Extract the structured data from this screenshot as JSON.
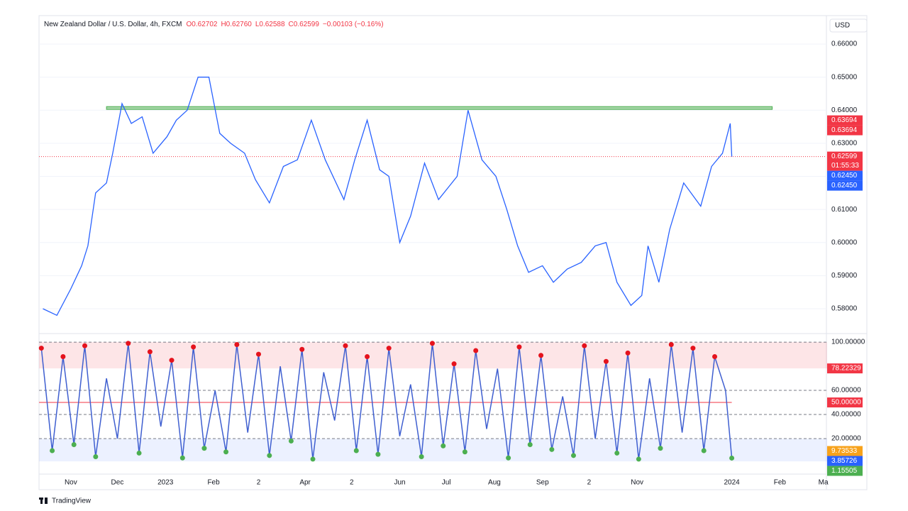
{
  "chart_data": [
    {
      "type": "line",
      "title": "New Zealand Dollar / U.S. Dollar, 4h, FXCM",
      "quote_labels": [
        "O0.62702",
        "H0.62760",
        "L0.62588",
        "C0.62599",
        "−0.00103 (−0.16%)"
      ],
      "currency": "USD",
      "x": [
        -18,
        -9,
        0,
        7,
        11,
        16,
        23,
        27,
        33,
        39,
        46,
        53,
        62,
        68,
        75,
        82,
        89,
        96,
        103,
        112,
        119,
        128,
        137,
        146,
        155,
        164,
        176,
        183,
        191,
        199,
        205,
        212,
        219,
        228,
        237,
        249,
        256,
        265,
        274,
        281,
        288,
        295,
        304,
        311,
        320,
        329,
        338,
        345,
        352,
        361,
        368,
        372,
        379,
        386,
        395,
        406,
        413,
        420,
        425,
        426
      ],
      "values": [
        0.58,
        0.578,
        0.586,
        0.593,
        0.599,
        0.615,
        0.618,
        0.627,
        0.642,
        0.636,
        0.638,
        0.627,
        0.632,
        0.637,
        0.64,
        0.65,
        0.65,
        0.633,
        0.63,
        0.627,
        0.619,
        0.612,
        0.623,
        0.625,
        0.637,
        0.625,
        0.613,
        0.625,
        0.637,
        0.622,
        0.62,
        0.6,
        0.608,
        0.624,
        0.613,
        0.62,
        0.64,
        0.625,
        0.62,
        0.61,
        0.599,
        0.591,
        0.593,
        0.588,
        0.592,
        0.594,
        0.599,
        0.6,
        0.588,
        0.581,
        0.584,
        0.599,
        0.588,
        0.604,
        0.618,
        0.611,
        0.623,
        0.627,
        0.636,
        0.62599
      ],
      "color": "#2962ff",
      "xlim": [
        -20.5,
        487
      ],
      "ylim": [
        0.5742,
        0.6686
      ],
      "yticks": [
        {
          "value": 0.58,
          "label": "0.58000"
        },
        {
          "value": 0.59,
          "label": "0.59000"
        },
        {
          "value": 0.6,
          "label": "0.60000"
        },
        {
          "value": 0.61,
          "label": "0.61000"
        },
        {
          "value": 0.62,
          "label": "0.62000"
        },
        {
          "value": 0.63,
          "label": "0.63000"
        },
        {
          "value": 0.64,
          "label": "0.64000"
        },
        {
          "value": 0.65,
          "label": "0.65000"
        },
        {
          "value": 0.66,
          "label": "0.66000"
        }
      ],
      "xticks": [
        {
          "value": 0,
          "label": "Nov"
        },
        {
          "value": 30,
          "label": "Dec"
        },
        {
          "value": 61,
          "label": "2023"
        },
        {
          "value": 92,
          "label": "Feb"
        },
        {
          "value": 121,
          "label": "2"
        },
        {
          "value": 151,
          "label": "Apr"
        },
        {
          "value": 181,
          "label": "2"
        },
        {
          "value": 212,
          "label": "Jun"
        },
        {
          "value": 242,
          "label": "Jul"
        },
        {
          "value": 273,
          "label": "Aug"
        },
        {
          "value": 304,
          "label": "Sep"
        },
        {
          "value": 334,
          "label": "2"
        },
        {
          "value": 365,
          "label": "Nov"
        },
        {
          "value": 426,
          "label": "2024"
        },
        {
          "value": 457,
          "label": "Feb"
        },
        {
          "value": 485,
          "label": "Ma"
        }
      ],
      "resistance_zone": [
        0.6403,
        0.6411
      ],
      "price_labels": [
        {
          "value": 0.63694,
          "label": "0.63694",
          "color": "#f23645"
        },
        {
          "value": 0.63694,
          "label": "0.63694",
          "color": "#f23645"
        },
        {
          "value": 0.62599,
          "label": "0.62599",
          "color": "#f23645"
        },
        {
          "value": 0.6245,
          "label": "0.62450",
          "color": "#2962ff"
        },
        {
          "value": 0.6245,
          "label": "0.62450",
          "color": "#2962ff"
        }
      ],
      "countdown": "01:55:33"
    },
    {
      "type": "line",
      "x": [
        -19,
        -12,
        -5,
        2,
        9,
        16,
        23,
        30,
        37,
        44,
        51,
        58,
        65,
        72,
        79,
        86,
        93,
        100,
        107,
        114,
        121,
        128,
        135,
        142,
        149,
        156,
        163,
        170,
        177,
        184,
        191,
        198,
        205,
        212,
        219,
        226,
        233,
        240,
        247,
        254,
        261,
        268,
        275,
        282,
        289,
        296,
        303,
        310,
        317,
        324,
        331,
        338,
        345,
        352,
        359,
        366,
        373,
        380,
        387,
        394,
        401,
        408,
        415,
        422,
        426
      ],
      "values": [
        95,
        10,
        88,
        15,
        97,
        5,
        70,
        20,
        99,
        8,
        92,
        30,
        85,
        4,
        96,
        12,
        60,
        9,
        98,
        25,
        90,
        6,
        80,
        18,
        94,
        3,
        75,
        35,
        97,
        10,
        88,
        7,
        95,
        22,
        65,
        5,
        99,
        14,
        82,
        9,
        93,
        28,
        78,
        4,
        96,
        15,
        89,
        11,
        55,
        6,
        97,
        20,
        84,
        8,
        91,
        3,
        70,
        12,
        98,
        25,
        95,
        10,
        88,
        60,
        3.85726
      ],
      "color": "#3f5fd0",
      "xlim": [
        -20.5,
        487
      ],
      "ylim": [
        -4.7,
        102.4
      ],
      "yticks": [
        {
          "value": 100,
          "label": "100.00000"
        },
        {
          "value": 60,
          "label": "60.00000"
        },
        {
          "value": 40,
          "label": "40.00000"
        },
        {
          "value": 20,
          "label": "20.00000"
        }
      ],
      "level_labels": [
        {
          "value": 78.22329,
          "label": "78.22329",
          "color": "#f23645"
        },
        {
          "value": 50,
          "label": "50.00000",
          "color": "#f23645"
        },
        {
          "value": 9.73533,
          "label": "9.73533",
          "color": "#f7a21b"
        },
        {
          "value": 3.85726,
          "label": "3.85726",
          "color": "#2962ff"
        },
        {
          "value": 1.15505,
          "label": "1.15505",
          "color": "#4caf50"
        }
      ]
    }
  ],
  "footer": "TradingView"
}
